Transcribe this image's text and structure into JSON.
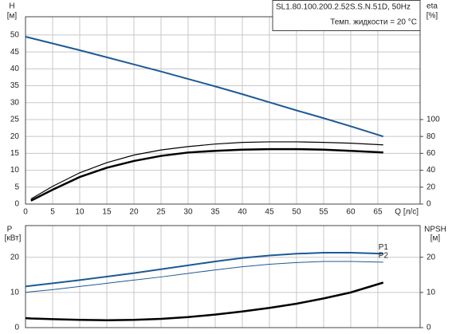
{
  "chart_data": [
    {
      "type": "line",
      "title": "SL1.80.100.200.2.52S.S.N.51D, 50Hz",
      "subtitle": "Темп. жидкости = 20 °C",
      "ylabel": "H",
      "yunit": "[м]",
      "y2label": "eta",
      "y2unit": "[%]",
      "xlabel": "Q [л/с]",
      "x": [
        0,
        1,
        5,
        10,
        15,
        20,
        25,
        30,
        35,
        40,
        45,
        50,
        55,
        60,
        66
      ],
      "xlim": [
        0,
        72.8
      ],
      "xticks": [
        0,
        5,
        10,
        15,
        20,
        25,
        30,
        35,
        40,
        45,
        50,
        55,
        60,
        65
      ],
      "ylim": [
        0,
        55.4
      ],
      "yticks": [
        0,
        5,
        10,
        15,
        20,
        25,
        30,
        35,
        40,
        45,
        50
      ],
      "y2lim": [
        0,
        221.6
      ],
      "y2ticks": [
        0,
        20,
        40,
        60,
        80,
        100
      ],
      "grid": true,
      "series": [
        {
          "color": "#1d5a96",
          "line_width": 2,
          "values": [
            49.5,
            49.1,
            47.5,
            45.5,
            43.4,
            41.3,
            39.2,
            37,
            34.8,
            32.5,
            30.1,
            27.7,
            25.4,
            23,
            20
          ]
        },
        {
          "color": "#000000",
          "line_width": 1.2,
          "axis": "y2",
          "values": [
            null,
            6,
            21,
            37,
            49,
            58,
            64,
            68,
            71,
            73,
            73.6,
            73.6,
            73,
            72,
            70
          ]
        },
        {
          "color": "#000000",
          "line_width": 2.5,
          "axis": "y2",
          "values": [
            null,
            4,
            17,
            32,
            43,
            51,
            57,
            61,
            63,
            64.4,
            65,
            65,
            64.4,
            63,
            61
          ]
        }
      ]
    },
    {
      "type": "line",
      "ylabel": "P",
      "yunit": "[кВт]",
      "y2label": "NPSH",
      "y2unit": "[м]",
      "x": [
        0,
        1,
        5,
        10,
        15,
        20,
        25,
        30,
        35,
        40,
        45,
        50,
        55,
        60,
        66
      ],
      "xlim": [
        0,
        72.8
      ],
      "xticks": [
        0,
        5,
        10,
        15,
        20,
        25,
        30,
        35,
        40,
        45,
        50,
        55,
        60,
        65
      ],
      "ylim": [
        0,
        29
      ],
      "yticks": [
        0,
        10,
        20
      ],
      "y2lim": [
        0,
        29
      ],
      "y2ticks": [
        0,
        10,
        20
      ],
      "grid": true,
      "series": [
        {
          "name": "P1",
          "color": "#1d5a96",
          "line_width": 2,
          "values": [
            11.7,
            11.9,
            12.6,
            13.5,
            14.5,
            15.5,
            16.6,
            17.7,
            18.8,
            19.8,
            20.5,
            21,
            21.3,
            21.3,
            21
          ]
        },
        {
          "name": "P2",
          "color": "#1d5a96",
          "line_width": 1,
          "values": [
            10,
            10.2,
            10.8,
            11.7,
            12.6,
            13.5,
            14.4,
            15.4,
            16.4,
            17.3,
            18,
            18.5,
            18.8,
            18.8,
            18.6
          ]
        },
        {
          "color": "#000000",
          "line_width": 2.5,
          "axis": "y2",
          "values": [
            2.7,
            2.6,
            2.4,
            2.2,
            2.1,
            2.2,
            2.5,
            3,
            3.7,
            4.6,
            5.6,
            6.8,
            8.3,
            10,
            12.8
          ]
        }
      ]
    }
  ]
}
